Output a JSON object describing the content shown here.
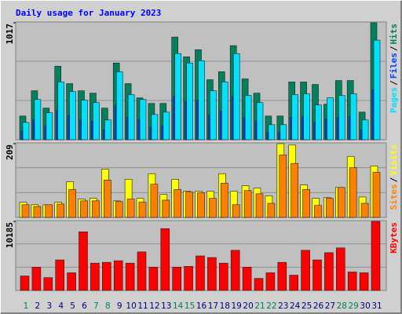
{
  "chart_data": [
    {
      "type": "bar",
      "title": "Daily usage for January 2023",
      "title_color": "#0000ff",
      "ylim": [
        0,
        1017
      ],
      "yticks": [
        1017
      ],
      "legend_separator": "/",
      "series": [
        {
          "name": "Pages",
          "color": "#00e0ff",
          "values": [
            151,
            350,
            234,
            502,
            419,
            344,
            323,
            172,
            591,
            392,
            350,
            220,
            240,
            749,
            667,
            687,
            426,
            502,
            749,
            385,
            323,
            131,
            131,
            392,
            399,
            302,
            364,
            385,
            399,
            172,
            866
          ]
        },
        {
          "name": "Files",
          "color": "#0040ff",
          "values": [
            76,
            175,
            117,
            251,
            210,
            172,
            162,
            86,
            296,
            196,
            175,
            110,
            120,
            375,
            334,
            344,
            213,
            251,
            375,
            193,
            162,
            66,
            66,
            196,
            200,
            151,
            182,
            193,
            200,
            86,
            433
          ]
        },
        {
          "name": "Hits",
          "color": "#00805c",
          "values": [
            206,
            426,
            275,
            639,
            488,
            426,
            405,
            275,
            667,
            488,
            364,
            316,
            316,
            893,
            721,
            783,
            522,
            591,
            818,
            529,
            405,
            206,
            206,
            502,
            502,
            481,
            309,
            515,
            515,
            240,
            1017
          ]
        }
      ]
    },
    {
      "type": "bar",
      "ylim": [
        0,
        209
      ],
      "yticks": [
        209
      ],
      "legend_separator": "/",
      "series": [
        {
          "name": "Sites",
          "color": "#ff8000",
          "values": [
            36,
            31,
            36,
            38,
            79,
            47,
            47,
            106,
            45,
            52,
            43,
            94,
            49,
            79,
            72,
            70,
            54,
            97,
            36,
            76,
            67,
            40,
            177,
            153,
            79,
            34,
            54,
            85,
            141,
            40,
            128
          ]
        },
        {
          "name": "Visits",
          "color": "#ffff00",
          "values": [
            43,
            36,
            36,
            43,
            101,
            52,
            54,
            137,
            47,
            108,
            54,
            124,
            65,
            108,
            74,
            74,
            74,
            124,
            74,
            90,
            83,
            61,
            209,
            205,
            92,
            54,
            56,
            85,
            173,
            58,
            146
          ]
        }
      ]
    },
    {
      "type": "bar",
      "ylim": [
        0,
        10185
      ],
      "yticks": [
        10185
      ],
      "categories": [
        "1",
        "2",
        "3",
        "4",
        "5",
        "6",
        "7",
        "8",
        "9",
        "10",
        "11",
        "12",
        "13",
        "14",
        "15",
        "16",
        "17",
        "18",
        "19",
        "20",
        "21",
        "22",
        "23",
        "24",
        "25",
        "26",
        "27",
        "28",
        "29",
        "30",
        "31"
      ],
      "category_colors": [
        "#00805c",
        "#000080",
        "#000080",
        "#000080",
        "#000080",
        "#000080",
        "#00805c",
        "#00805c",
        "#000080",
        "#000080",
        "#000080",
        "#000080",
        "#000080",
        "#00805c",
        "#00805c",
        "#000080",
        "#000080",
        "#000080",
        "#000080",
        "#000080",
        "#00805c",
        "#00805c",
        "#000080",
        "#000080",
        "#000080",
        "#000080",
        "#000080",
        "#00805c",
        "#00805c",
        "#000080",
        "#000080"
      ],
      "series": [
        {
          "name": "KBytes",
          "color": "#ff0000",
          "values": [
            2132,
            3434,
            1895,
            4500,
            2605,
            8645,
            4027,
            4145,
            4382,
            4027,
            5685,
            3434,
            9119,
            3434,
            3553,
            5092,
            4856,
            4027,
            5921,
            3434,
            1776,
            2605,
            4145,
            2250,
            5921,
            4500,
            5566,
            6277,
            2724,
            2605,
            10185
          ]
        }
      ]
    }
  ]
}
